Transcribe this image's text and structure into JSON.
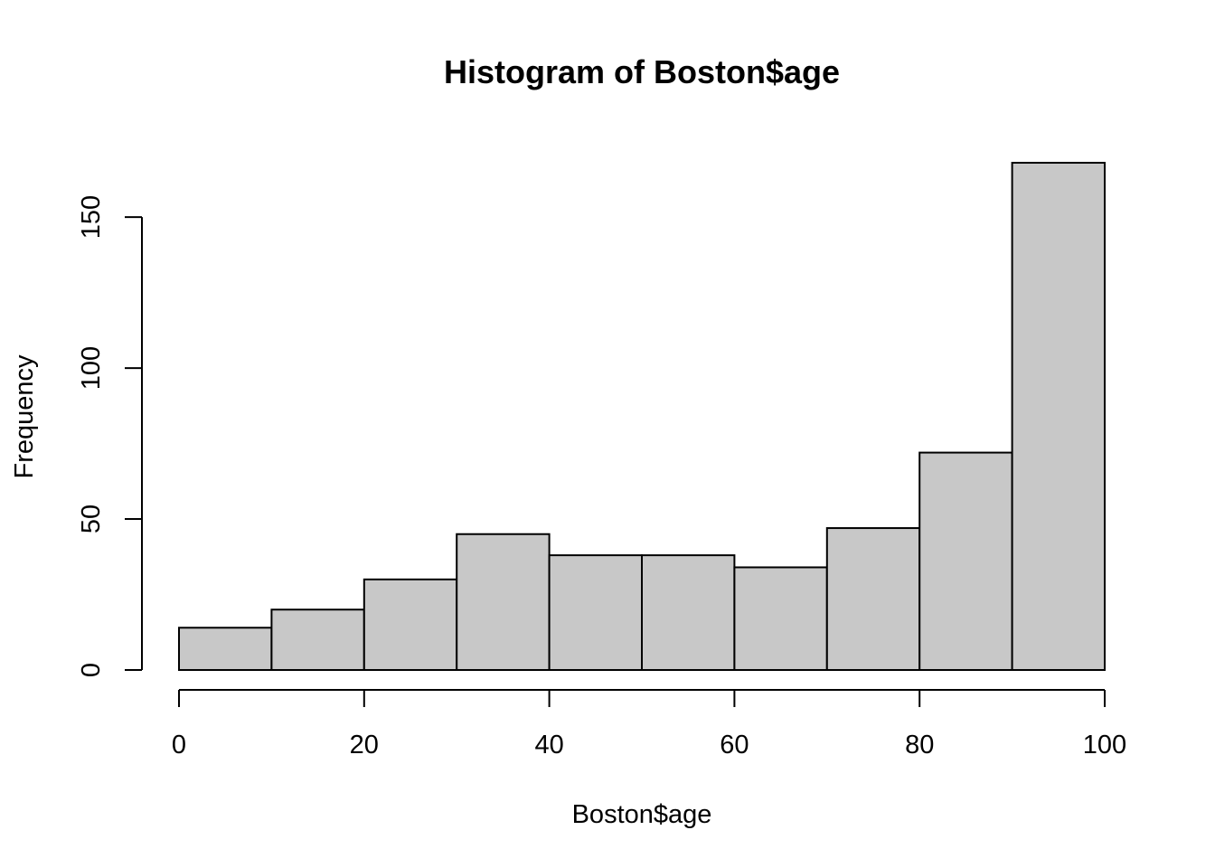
{
  "chart_data": {
    "type": "bar",
    "title": "Histogram of Boston$age",
    "xlabel": "Boston$age",
    "ylabel": "Frequency",
    "bins": [
      {
        "start": 0,
        "end": 10,
        "count": 14
      },
      {
        "start": 10,
        "end": 20,
        "count": 20
      },
      {
        "start": 20,
        "end": 30,
        "count": 30
      },
      {
        "start": 30,
        "end": 40,
        "count": 45
      },
      {
        "start": 40,
        "end": 50,
        "count": 38
      },
      {
        "start": 50,
        "end": 60,
        "count": 38
      },
      {
        "start": 60,
        "end": 70,
        "count": 34
      },
      {
        "start": 70,
        "end": 80,
        "count": 47
      },
      {
        "start": 80,
        "end": 90,
        "count": 72
      },
      {
        "start": 90,
        "end": 100,
        "count": 168
      }
    ],
    "xlim": [
      0,
      100
    ],
    "ylim": [
      0,
      168
    ],
    "x_ticks": [
      0,
      20,
      40,
      60,
      80,
      100
    ],
    "y_ticks": [
      0,
      50,
      100,
      150
    ],
    "bar_color": "#c8c8c8",
    "grid": false,
    "legend": "none"
  }
}
